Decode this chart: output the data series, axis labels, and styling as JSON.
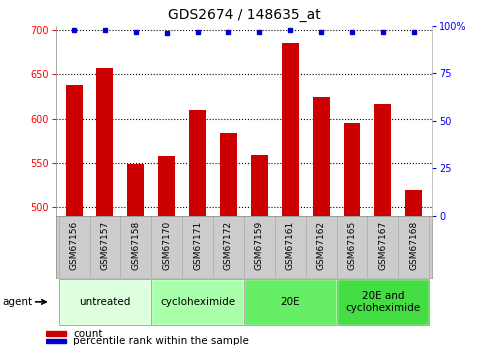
{
  "title": "GDS2674 / 148635_at",
  "samples": [
    "GSM67156",
    "GSM67157",
    "GSM67158",
    "GSM67170",
    "GSM67171",
    "GSM67172",
    "GSM67159",
    "GSM67161",
    "GSM67162",
    "GSM67165",
    "GSM67167",
    "GSM67168"
  ],
  "counts": [
    638,
    657,
    549,
    557,
    610,
    584,
    559,
    686,
    624,
    595,
    617,
    519
  ],
  "percentile_ranks": [
    98,
    98,
    97,
    96,
    97,
    97,
    97,
    98,
    97,
    97,
    97,
    97
  ],
  "ylim_left": [
    490,
    705
  ],
  "ylim_right": [
    0,
    100
  ],
  "yticks_left": [
    500,
    550,
    600,
    650,
    700
  ],
  "yticks_right": [
    0,
    25,
    50,
    75,
    100
  ],
  "bar_color": "#CC0000",
  "dot_color": "#0000CC",
  "plot_bg_color": "#ffffff",
  "sample_label_bg": "#cccccc",
  "groups": [
    {
      "label": "untreated",
      "start": 0,
      "end": 3,
      "color": "#ddffdd"
    },
    {
      "label": "cycloheximide",
      "start": 3,
      "end": 6,
      "color": "#aaffaa"
    },
    {
      "label": "20E",
      "start": 6,
      "end": 9,
      "color": "#66ee66"
    },
    {
      "label": "20E and\ncycloheximide",
      "start": 9,
      "end": 12,
      "color": "#44dd44"
    }
  ],
  "agent_label": "agent",
  "legend_count_label": "count",
  "legend_pct_label": "percentile rank within the sample",
  "title_fontsize": 10,
  "tick_fontsize": 7,
  "sample_fontsize": 6.5,
  "label_fontsize": 7.5,
  "group_label_fontsize": 7.5
}
